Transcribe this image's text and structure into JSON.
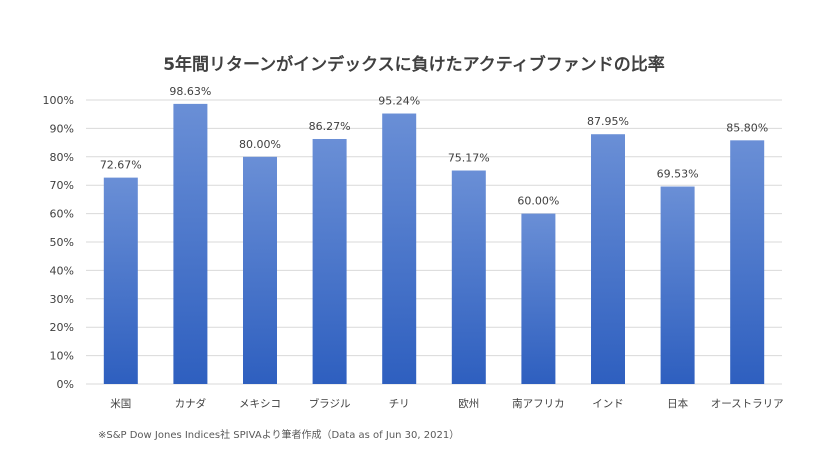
{
  "chart_data": {
    "type": "bar",
    "title": "5年間リターンがインデックスに負けたアクティブファンドの比率",
    "categories": [
      "米国",
      "カナダ",
      "メキシコ",
      "ブラジル",
      "チリ",
      "欧州",
      "南アフリカ",
      "インド",
      "日本",
      "オーストラリア"
    ],
    "values": [
      72.67,
      98.63,
      80.0,
      86.27,
      95.24,
      75.17,
      60.0,
      87.95,
      69.53,
      85.8
    ],
    "data_labels": [
      "72.67%",
      "98.63%",
      "80.00%",
      "86.27%",
      "95.24%",
      "75.17%",
      "60.00%",
      "87.95%",
      "69.53%",
      "85.80%"
    ],
    "y_ticks": [
      "0%",
      "10%",
      "20%",
      "30%",
      "40%",
      "50%",
      "60%",
      "70%",
      "80%",
      "90%",
      "100%"
    ],
    "ylim": [
      0,
      100
    ],
    "xlabel": "",
    "ylabel": "",
    "grid": true,
    "legend": "none",
    "bar_color_top": "#6a8fd6",
    "bar_color_bottom": "#2e5fbf",
    "grid_color": "#d9d9d9"
  },
  "source_note": "※S&P Dow Jones Indices社 SPIVAより筆者作成（Data as of Jun 30, 2021）"
}
